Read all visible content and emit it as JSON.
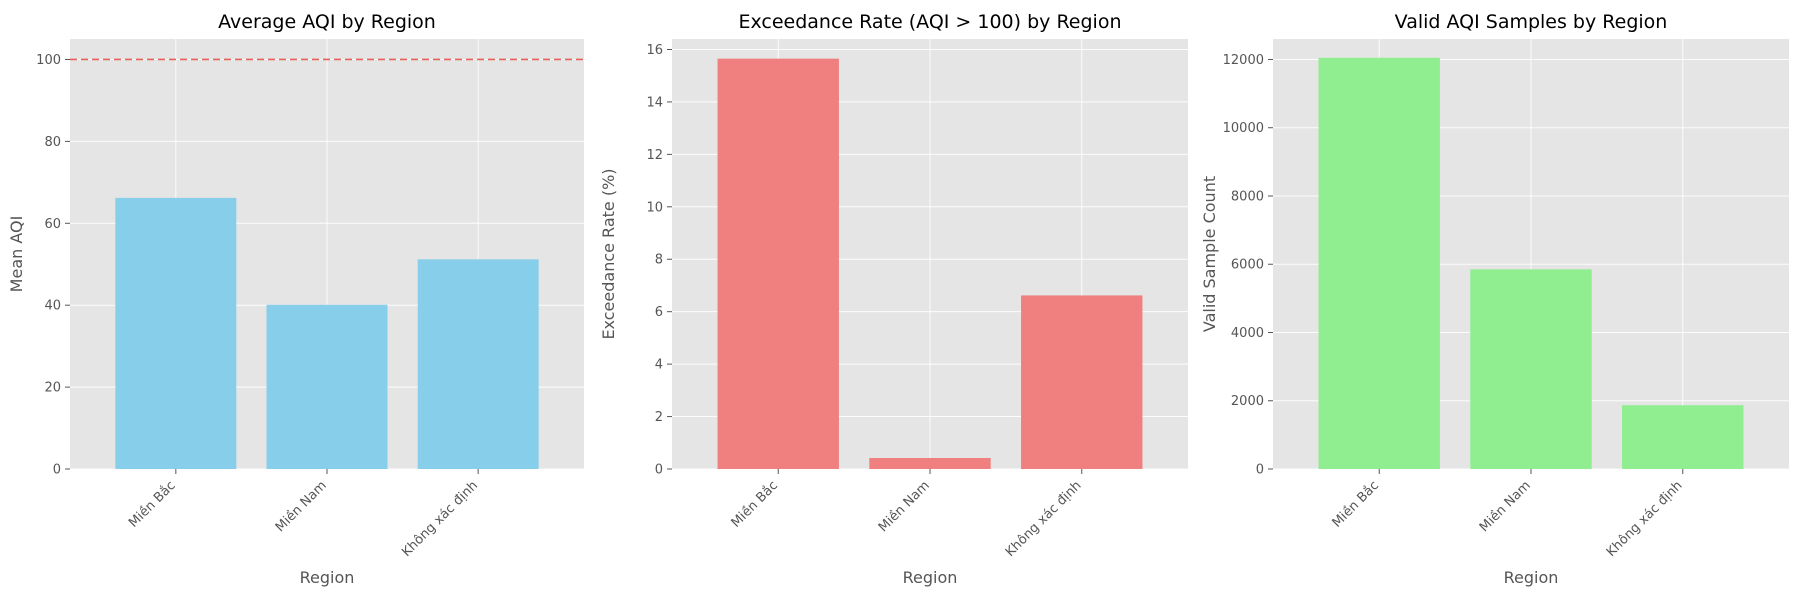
{
  "chart_data": [
    {
      "type": "bar",
      "title": "Average AQI by Region",
      "xlabel": "Region",
      "ylabel": "Mean AQI",
      "categories": [
        "Miền Bắc",
        "Miền Nam",
        "Không xác định"
      ],
      "values": [
        66.2,
        40.1,
        51.2
      ],
      "ylim": [
        0,
        105
      ],
      "yticks": [
        0,
        20,
        40,
        60,
        80,
        100
      ],
      "reference_line": {
        "y": 100,
        "style": "dashed",
        "color": "#e8605a"
      },
      "bar_color": "#87ceeb",
      "grid": true
    },
    {
      "type": "bar",
      "title": "Exceedance Rate (AQI > 100) by Region",
      "xlabel": "Region",
      "ylabel": "Exceedance Rate (%)",
      "categories": [
        "Miền Bắc",
        "Miền Nam",
        "Không xác định"
      ],
      "values": [
        15.65,
        0.42,
        6.62
      ],
      "ylim": [
        0,
        16.4
      ],
      "yticks": [
        0,
        2,
        4,
        6,
        8,
        10,
        12,
        14,
        16
      ],
      "bar_color": "#f08080",
      "grid": true
    },
    {
      "type": "bar",
      "title": "Valid AQI Samples by Region",
      "xlabel": "Region",
      "ylabel": "Valid Sample Count",
      "categories": [
        "Miền Bắc",
        "Miền Nam",
        "Không xác định"
      ],
      "values": [
        12050,
        5850,
        1870
      ],
      "ylim": [
        0,
        12600
      ],
      "yticks": [
        0,
        2000,
        4000,
        6000,
        8000,
        10000,
        12000
      ],
      "bar_color": "#90ee90",
      "grid": true
    }
  ]
}
